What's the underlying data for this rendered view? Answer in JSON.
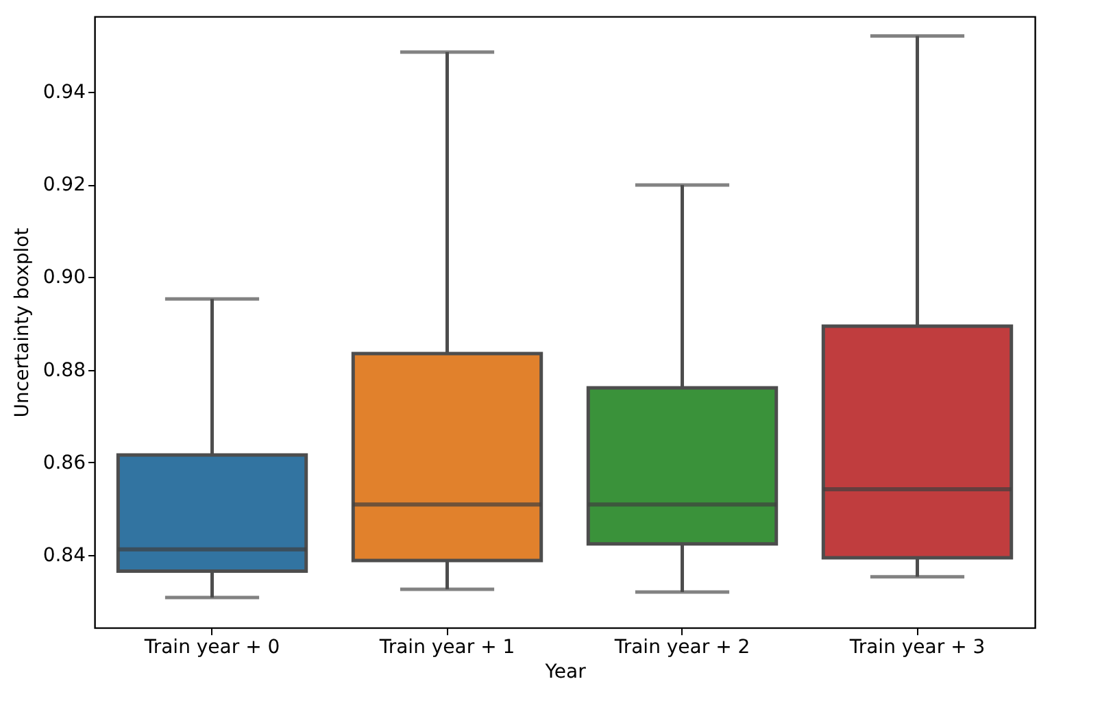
{
  "chart_data": {
    "type": "box",
    "xlabel": "Year",
    "ylabel": "Uncertainty boxplot",
    "categories": [
      "Train year + 0",
      "Train year + 1",
      "Train year + 2",
      "Train year + 3"
    ],
    "colors": [
      "#3274a1",
      "#e1812c",
      "#3a923a",
      "#c03d3e"
    ],
    "boxes": [
      {
        "low": 0.8308,
        "q1": 0.8365,
        "median": 0.8412,
        "q3": 0.8616,
        "high": 0.8953
      },
      {
        "low": 0.8326,
        "q1": 0.8388,
        "median": 0.8509,
        "q3": 0.8835,
        "high": 0.9486
      },
      {
        "low": 0.832,
        "q1": 0.8424,
        "median": 0.8509,
        "q3": 0.8761,
        "high": 0.9199
      },
      {
        "low": 0.8353,
        "q1": 0.8394,
        "median": 0.8542,
        "q3": 0.8894,
        "high": 0.9521
      }
    ],
    "ylim": [
      0.8243,
      0.9563
    ],
    "yticks": [
      0.84,
      0.86,
      0.88,
      {
        "value": 0.9,
        "label": "0.90"
      },
      0.92,
      0.94
    ],
    "grid": false
  }
}
